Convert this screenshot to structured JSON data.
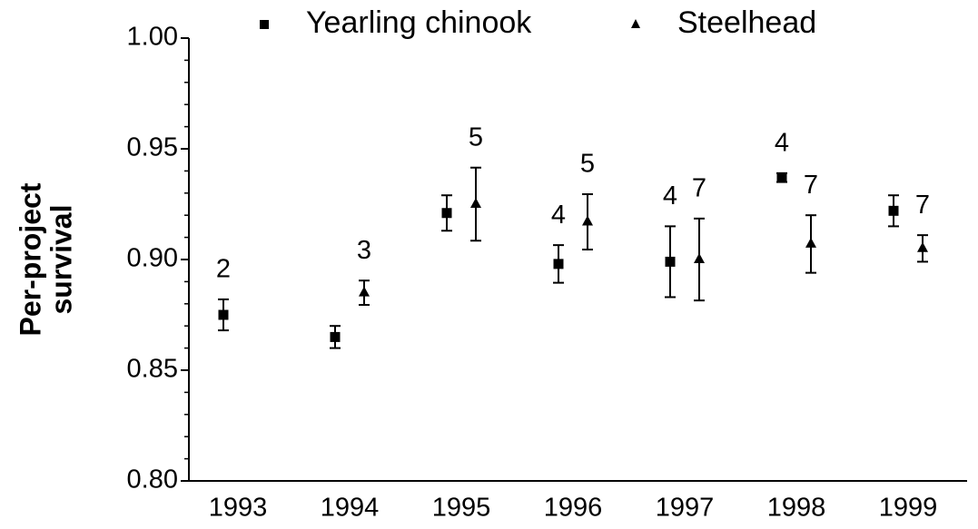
{
  "chart_data": {
    "type": "errorbar",
    "ylabel": [
      "Per-project",
      "survival"
    ],
    "categories": [
      "1993",
      "1994",
      "1995",
      "1996",
      "1997",
      "1998",
      "1999"
    ],
    "series": [
      {
        "name": "Yearling chinook",
        "marker": "square",
        "color": "#000000",
        "values": [
          0.875,
          0.865,
          0.921,
          0.898,
          0.899,
          0.937,
          0.922
        ],
        "errors": [
          0.007,
          0.005,
          0.008,
          0.0085,
          0.016,
          0.002,
          0.007
        ],
        "labels": [
          2,
          null,
          null,
          4,
          4,
          4,
          null
        ]
      },
      {
        "name": "Steelhead",
        "marker": "triangle",
        "color": "#000000",
        "values": [
          null,
          0.885,
          0.925,
          0.917,
          0.9,
          0.907,
          0.905
        ],
        "errors": [
          null,
          0.0055,
          0.0165,
          0.0125,
          0.0185,
          0.013,
          0.006
        ],
        "labels": [
          null,
          3,
          5,
          5,
          7,
          7,
          7
        ]
      }
    ],
    "ylim": [
      0.8,
      1.0
    ],
    "yticks": [
      {
        "value": 0.8,
        "label": "0.80"
      },
      0.85,
      {
        "value": 0.9,
        "label": "0.90"
      },
      0.95,
      {
        "value": 1.0,
        "label": "1.00"
      }
    ],
    "minor_yticks": [
      0.81,
      0.82,
      0.83,
      0.84,
      0.86,
      0.87,
      0.88,
      0.89,
      0.91,
      0.92,
      0.93,
      0.94,
      0.96,
      0.97,
      0.98,
      0.99
    ],
    "legend": "top",
    "grid": false
  }
}
